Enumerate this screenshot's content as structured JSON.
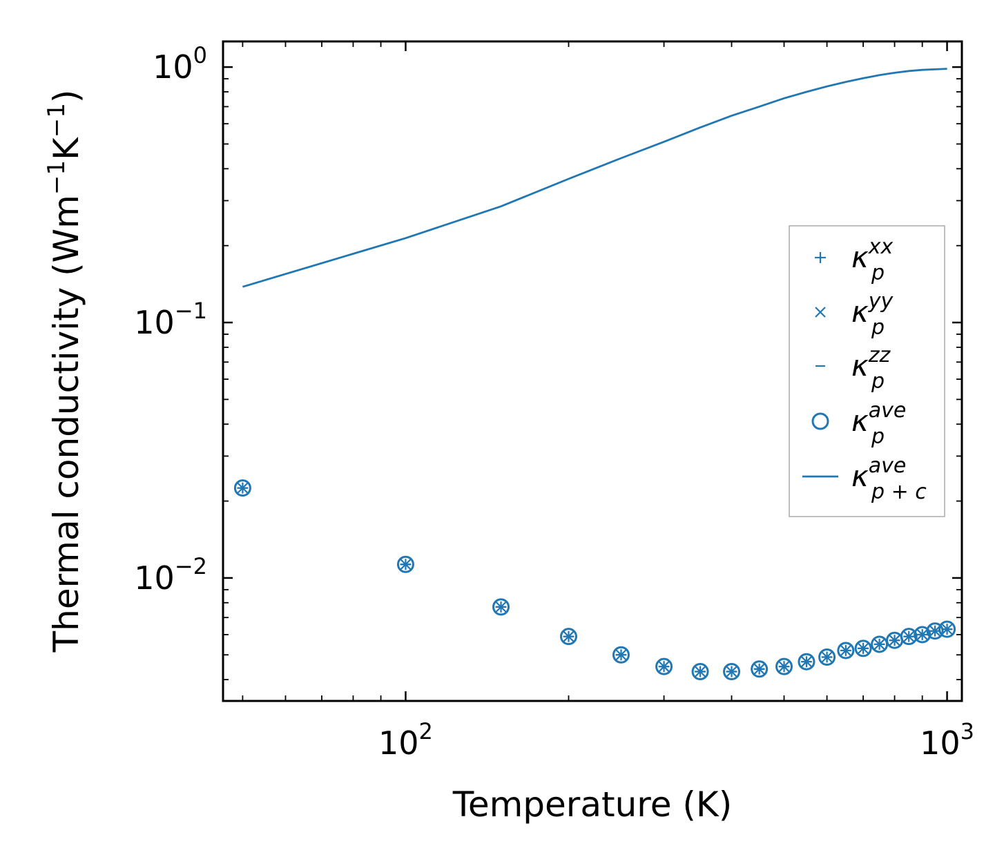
{
  "chart_data": {
    "type": "scatter",
    "title": "",
    "xlabel": "Temperature (K)",
    "ylabel": "Thermal conductivity (Wm",
    "ylabel_sup1": "−1",
    "ylabel_mid": "K",
    "ylabel_sup2": "−1",
    "ylabel_close": ")",
    "xscale": "log",
    "yscale": "log",
    "xlim": [
      46,
      1065
    ],
    "ylim": [
      0.0033,
      1.26
    ],
    "x_ticks": [
      {
        "value": 100,
        "base": "10",
        "exp": "2"
      },
      {
        "value": 1000,
        "base": "10",
        "exp": "3"
      }
    ],
    "y_ticks": [
      {
        "value": 0.01,
        "base": "10",
        "exp": "−2"
      },
      {
        "value": 0.1,
        "base": "10",
        "exp": "−1"
      },
      {
        "value": 1,
        "base": "10",
        "exp": "0"
      }
    ],
    "x": [
      50,
      100,
      150,
      200,
      250,
      300,
      350,
      400,
      450,
      500,
      550,
      600,
      650,
      700,
      750,
      800,
      850,
      900,
      950,
      1000
    ],
    "series": [
      {
        "name": "kappa_p_xx",
        "marker": "plus",
        "values": [
          0.0225,
          0.0113,
          0.0077,
          0.0059,
          0.005,
          0.0045,
          0.0043,
          0.0043,
          0.0044,
          0.0045,
          0.0047,
          0.0049,
          0.0052,
          0.0053,
          0.0055,
          0.0057,
          0.0059,
          0.006,
          0.0062,
          0.0063
        ]
      },
      {
        "name": "kappa_p_yy",
        "marker": "x",
        "values": [
          0.0225,
          0.0113,
          0.0077,
          0.0059,
          0.005,
          0.0045,
          0.0043,
          0.0043,
          0.0044,
          0.0045,
          0.0047,
          0.0049,
          0.0052,
          0.0053,
          0.0055,
          0.0057,
          0.0059,
          0.006,
          0.0062,
          0.0063
        ]
      },
      {
        "name": "kappa_p_zz",
        "marker": "dash",
        "values": [
          0.0225,
          0.0113,
          0.0077,
          0.0059,
          0.005,
          0.0045,
          0.0043,
          0.0043,
          0.0044,
          0.0045,
          0.0047,
          0.0049,
          0.0052,
          0.0053,
          0.0055,
          0.0057,
          0.0059,
          0.006,
          0.0062,
          0.0063
        ]
      },
      {
        "name": "kappa_p_ave",
        "marker": "circle",
        "values": [
          0.0225,
          0.0113,
          0.0077,
          0.0059,
          0.005,
          0.0045,
          0.0043,
          0.0043,
          0.0044,
          0.0045,
          0.0047,
          0.0049,
          0.0052,
          0.0053,
          0.0055,
          0.0057,
          0.0059,
          0.006,
          0.0062,
          0.0063
        ]
      },
      {
        "name": "kappa_pc_ave",
        "marker": "line",
        "values": [
          0.138,
          0.214,
          0.285,
          0.365,
          0.44,
          0.51,
          0.58,
          0.645,
          0.7,
          0.755,
          0.8,
          0.84,
          0.875,
          0.905,
          0.93,
          0.95,
          0.965,
          0.975,
          0.98,
          0.985
        ]
      }
    ],
    "legend": {
      "placement": "right",
      "entries": [
        {
          "symbol": "plus",
          "base": "κ",
          "sub": "p",
          "sup": "xx"
        },
        {
          "symbol": "x",
          "base": "κ",
          "sub": "p",
          "sup": "yy"
        },
        {
          "symbol": "dash",
          "base": "κ",
          "sub": "p",
          "sup": "zz"
        },
        {
          "symbol": "circle",
          "base": "κ",
          "sub": "p",
          "sup": "ave"
        },
        {
          "symbol": "line",
          "base": "κ",
          "sub": "p + c",
          "sup": "ave"
        }
      ]
    },
    "grid": false,
    "color": "#1f77b4"
  }
}
